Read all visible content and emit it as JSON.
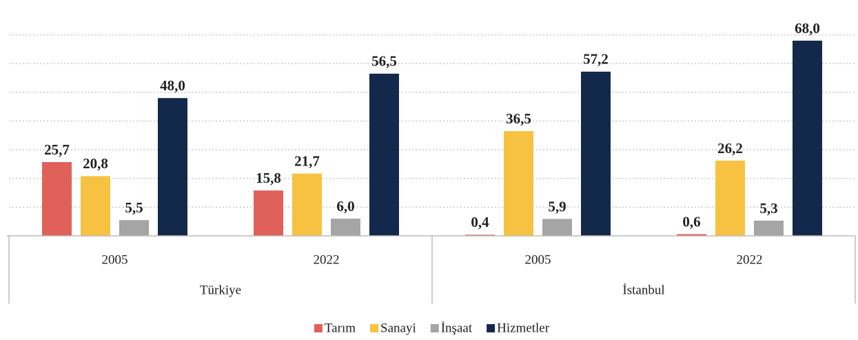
{
  "chart_data": {
    "type": "bar",
    "categories": [
      "2005",
      "2022",
      "2005",
      "2022"
    ],
    "groups": [
      "Türkiye",
      "İstanbul"
    ],
    "series": [
      {
        "name": "Tarım",
        "color": "#e0605a",
        "values": [
          25.7,
          15.8,
          0.4,
          0.6
        ],
        "value_labels": [
          "25,7",
          "15,8",
          "0,4",
          "0,6"
        ]
      },
      {
        "name": "Sanayi",
        "color": "#f7c242",
        "values": [
          20.8,
          21.7,
          36.5,
          26.2
        ],
        "value_labels": [
          "20,8",
          "21,7",
          "36,5",
          "26,2"
        ]
      },
      {
        "name": "İnşaat",
        "color": "#a5a5a5",
        "values": [
          5.5,
          6.0,
          5.9,
          5.3
        ],
        "value_labels": [
          "5,5",
          "6,0",
          "5,9",
          "5,3"
        ]
      },
      {
        "name": "Hizmetler",
        "color": "#13294b",
        "values": [
          48.0,
          56.5,
          57.2,
          68.0
        ],
        "value_labels": [
          "48,0",
          "56,5",
          "57,2",
          "68,0"
        ]
      }
    ],
    "ylim": [
      0,
      80
    ],
    "yticks": [
      0,
      10,
      20,
      30,
      40,
      50,
      60,
      70
    ],
    "grid": true,
    "legend": "bottom"
  }
}
